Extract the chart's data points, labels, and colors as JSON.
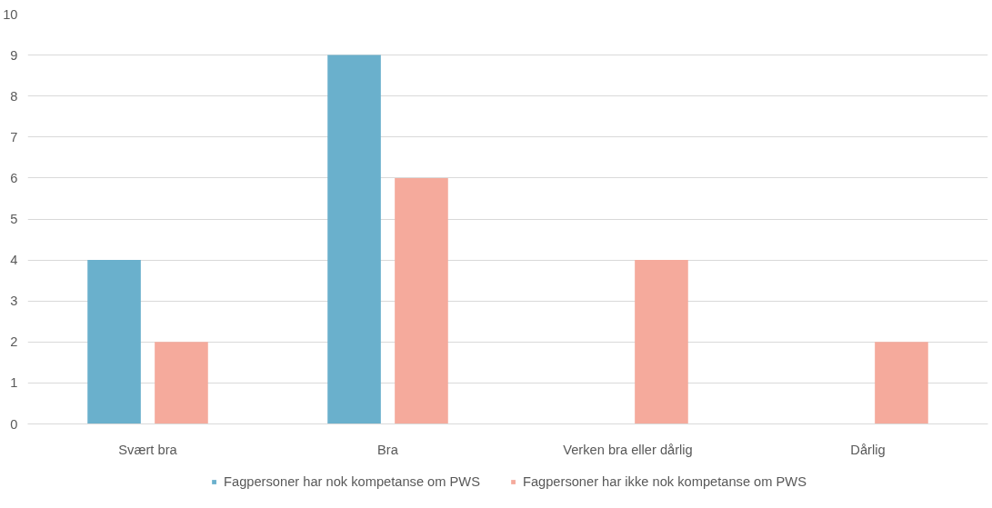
{
  "chart_data": {
    "type": "bar",
    "categories": [
      "Svært bra",
      "Bra",
      "Verken bra eller dårlig",
      "Dårlig"
    ],
    "series": [
      {
        "name": "Fagpersoner har nok kompetanse om PWS",
        "color": "#6ab0cc",
        "values": [
          4,
          9,
          0,
          0
        ]
      },
      {
        "name": "Fagpersoner har ikke nok kompetanse om PWS",
        "color": "#f5aa9c",
        "values": [
          2,
          6,
          4,
          2
        ]
      }
    ],
    "ylim": [
      0,
      10
    ],
    "yticks": [
      0,
      1,
      2,
      3,
      4,
      5,
      6,
      7,
      8,
      9,
      10
    ],
    "grid": "y",
    "legend": "bottom"
  }
}
